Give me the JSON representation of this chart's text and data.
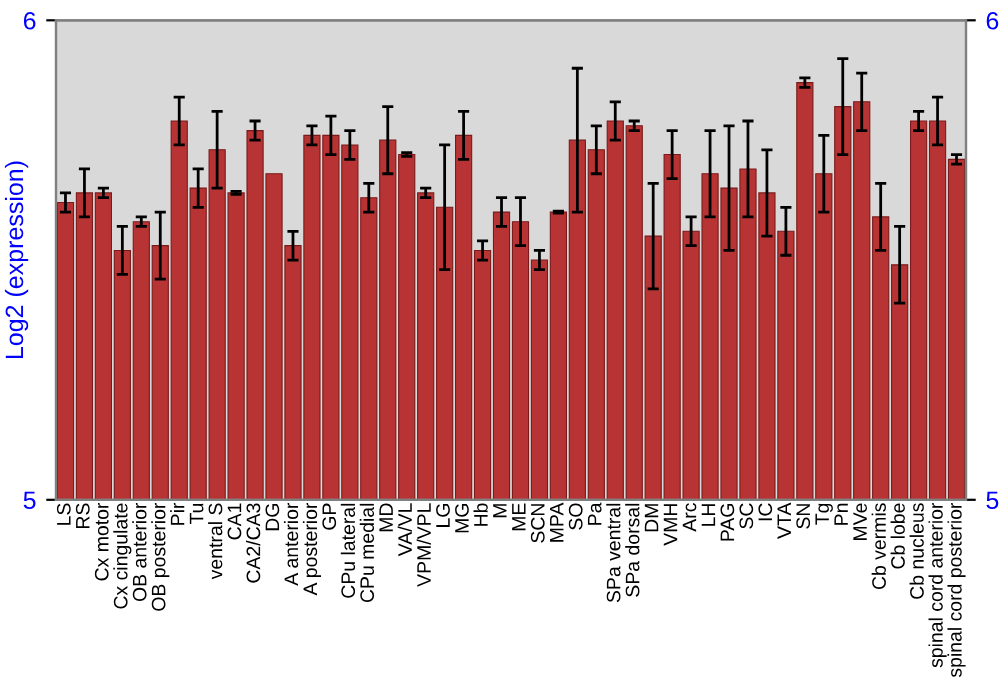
{
  "chart_data": {
    "type": "bar",
    "ylabel": "Log2 (expression)",
    "categories": [
      "LS",
      "RS",
      "Cx motor",
      "Cx cingulate",
      "OB anterior",
      "OB posterior",
      "Pir",
      "Tu",
      "ventral S",
      "CA1",
      "CA2/CA3",
      "DG",
      "A anterior",
      "A posterior",
      "GP",
      "CPu lateral",
      "CPu medial",
      "MD",
      "VA/VL",
      "VPM/VPL",
      "LG",
      "MG",
      "Hb",
      "M",
      "ME",
      "SCN",
      "MPA",
      "SO",
      "Pa",
      "SPa ventral",
      "SPa dorsal",
      "DM",
      "VMH",
      "Arc",
      "LH",
      "PAG",
      "SC",
      "IC",
      "VTA",
      "SN",
      "Tg",
      "Pn",
      "MVe",
      "Cb vermis",
      "Cb lobe",
      "Cb nucleus",
      "spinal cord anterior",
      "spinal cord posterior"
    ],
    "values": [
      5.62,
      5.64,
      5.64,
      5.52,
      5.58,
      5.53,
      5.79,
      5.65,
      5.73,
      5.64,
      5.77,
      5.68,
      5.53,
      5.76,
      5.76,
      5.74,
      5.63,
      5.75,
      5.72,
      5.64,
      5.61,
      5.76,
      5.52,
      5.6,
      5.58,
      5.5,
      5.6,
      5.75,
      5.73,
      5.79,
      5.78,
      5.55,
      5.72,
      5.56,
      5.68,
      5.65,
      5.69,
      5.64,
      5.56,
      5.87,
      5.68,
      5.82,
      5.83,
      5.59,
      5.49,
      5.79,
      5.79,
      5.71
    ],
    "errors": [
      0.02,
      0.05,
      0.01,
      0.05,
      0.01,
      0.07,
      0.05,
      0.04,
      0.08,
      0.003,
      0.02,
      null,
      0.03,
      0.02,
      0.04,
      0.03,
      0.03,
      0.07,
      0.004,
      0.01,
      0.13,
      0.05,
      0.02,
      0.03,
      0.05,
      0.02,
      0.002,
      0.15,
      0.05,
      0.04,
      0.01,
      0.11,
      0.05,
      0.03,
      0.09,
      0.13,
      0.1,
      0.09,
      0.05,
      0.01,
      0.08,
      0.1,
      0.06,
      0.07,
      0.08,
      0.02,
      0.05,
      0.01
    ],
    "color": "#b83434",
    "ylim": [
      5,
      6
    ],
    "yticks": [
      5,
      6
    ],
    "y2lim": [
      5,
      6
    ],
    "y2ticks": [
      5,
      6
    ]
  }
}
